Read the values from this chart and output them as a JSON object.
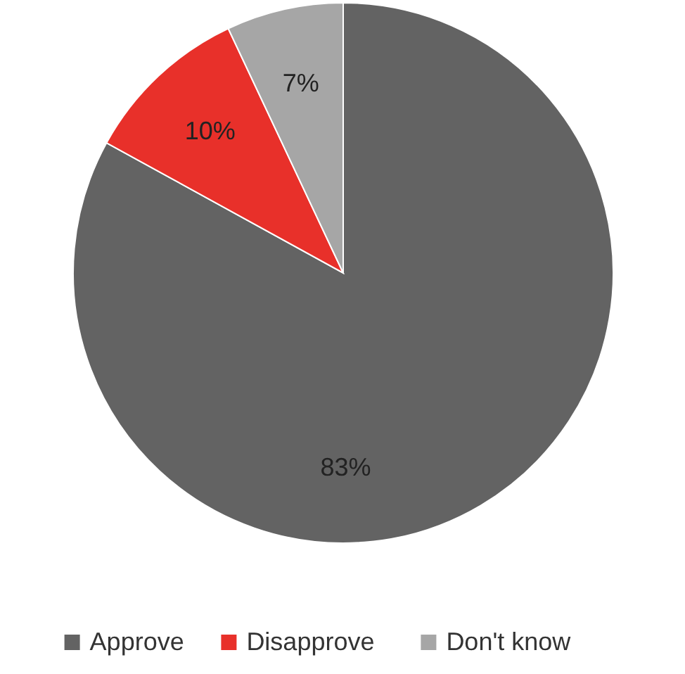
{
  "chart_data": {
    "type": "pie",
    "categories": [
      "Approve",
      "Disapprove",
      "Don't know"
    ],
    "values": [
      83,
      10,
      7
    ],
    "colors": [
      "#636363",
      "#e8302a",
      "#a6a6a6"
    ],
    "value_labels": [
      "83%",
      "10%",
      "7%"
    ],
    "legend": "bottom"
  }
}
